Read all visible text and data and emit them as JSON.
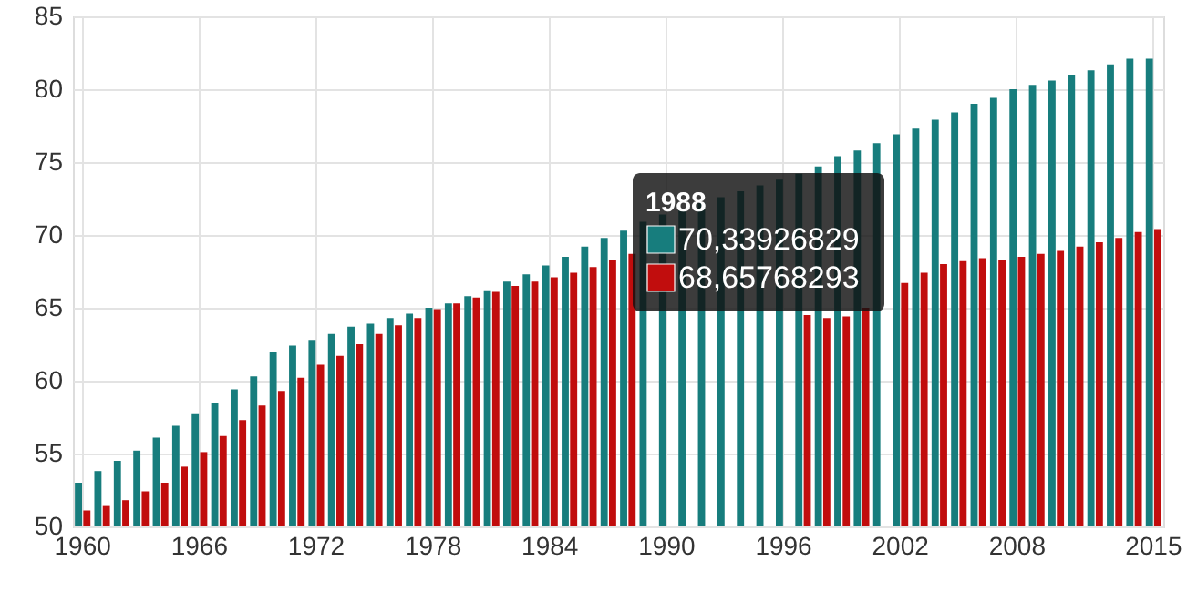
{
  "chart_data": {
    "type": "bar",
    "categories": [
      "1960",
      null,
      null,
      null,
      null,
      null,
      "1966",
      null,
      null,
      null,
      null,
      null,
      "1972",
      null,
      null,
      null,
      null,
      null,
      "1978",
      null,
      null,
      null,
      null,
      null,
      "1984",
      null,
      null,
      null,
      null,
      null,
      "1990",
      null,
      null,
      null,
      null,
      null,
      "1996",
      null,
      null,
      null,
      null,
      null,
      "2002",
      null,
      null,
      null,
      null,
      null,
      "2008",
      null,
      null,
      null,
      null,
      null,
      null,
      "2015"
    ],
    "series": [
      {
        "color": "#177d7d",
        "values": [
          53.0,
          53.8,
          54.5,
          55.2,
          56.1,
          56.9,
          57.7,
          58.5,
          59.4,
          60.3,
          62.0,
          62.4,
          62.8,
          63.2,
          63.7,
          63.9,
          64.3,
          64.6,
          65.0,
          65.3,
          65.8,
          66.2,
          66.8,
          67.3,
          67.9,
          68.5,
          69.2,
          69.8,
          70.3,
          70.9,
          71.4,
          71.8,
          72.2,
          72.6,
          73.0,
          73.4,
          73.8,
          74.2,
          74.7,
          75.4,
          75.8,
          76.3,
          76.9,
          77.3,
          77.9,
          78.4,
          79.0,
          79.4,
          80.0,
          80.3,
          80.6,
          81.0,
          81.3,
          81.7,
          82.1,
          82.1
        ]
      },
      {
        "color": "#c10d0d",
        "values": [
          51.1,
          51.4,
          51.8,
          52.4,
          53.0,
          54.1,
          55.1,
          56.2,
          57.3,
          58.3,
          59.3,
          60.2,
          61.1,
          61.7,
          62.5,
          63.2,
          63.8,
          64.3,
          64.9,
          65.3,
          65.7,
          66.1,
          66.5,
          66.8,
          67.1,
          67.4,
          67.8,
          68.3,
          68.7,
          null,
          null,
          null,
          null,
          null,
          null,
          null,
          null,
          64.5,
          64.3,
          64.4,
          65.0,
          null,
          66.7,
          67.4,
          68.0,
          68.2,
          68.4,
          68.3,
          68.5,
          68.7,
          68.9,
          69.2,
          69.5,
          69.8,
          70.2,
          70.4
        ]
      }
    ],
    "ylim": [
      50,
      85
    ],
    "yticks": [
      50,
      55,
      60,
      65,
      70,
      75,
      80,
      85
    ],
    "grid": true,
    "legend": false,
    "annotations": [
      "1988",
      "70,33926829",
      "68,65768293"
    ]
  }
}
